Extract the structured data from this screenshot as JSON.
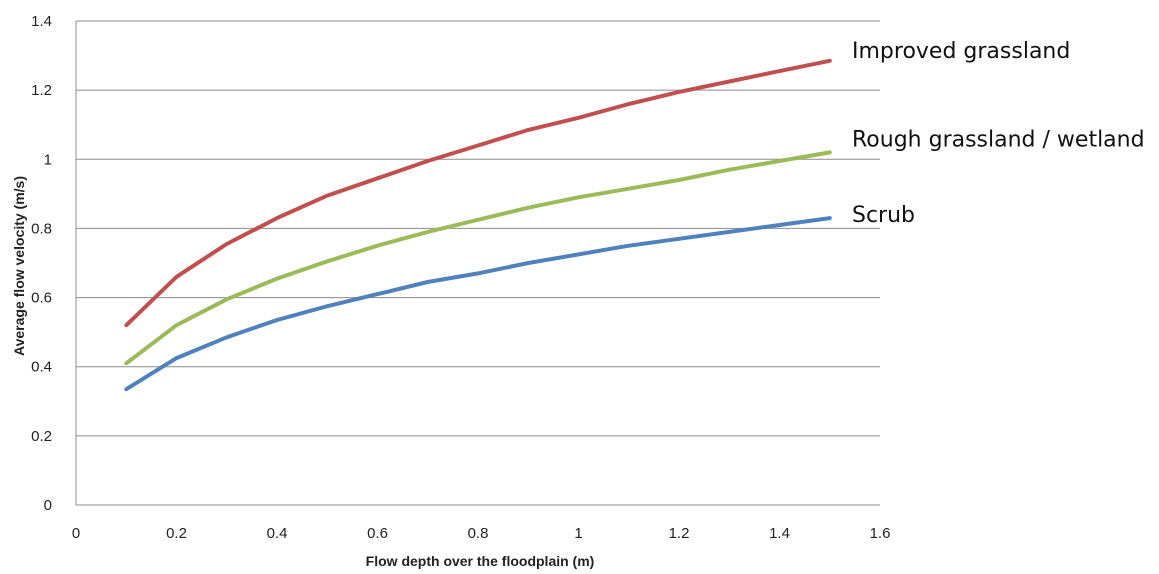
{
  "chart_data": {
    "type": "line",
    "title": "",
    "xlabel": "Flow depth over the floodplain  (m)",
    "ylabel": "Average flow velocity (m/s)",
    "xlim": [
      0,
      1.6
    ],
    "ylim": [
      0,
      1.4
    ],
    "x_ticks": [
      "0",
      "0.2",
      "0.4",
      "0.6",
      "0.8",
      "1",
      "1.2",
      "1.4",
      "1.6"
    ],
    "y_ticks": [
      "0",
      "0.2",
      "0.4",
      "0.6",
      "0.8",
      "1",
      "1.2",
      "1.4"
    ],
    "grid": "horizontal",
    "legend": "labels at line ends",
    "x": [
      0.1,
      0.2,
      0.3,
      0.4,
      0.5,
      0.6,
      0.7,
      0.8,
      0.9,
      1.0,
      1.1,
      1.2,
      1.3,
      1.4,
      1.5
    ],
    "series": [
      {
        "name": "Improved grassland",
        "color": "#c0504d",
        "values": [
          0.52,
          0.66,
          0.755,
          0.83,
          0.895,
          0.945,
          0.995,
          1.04,
          1.085,
          1.12,
          1.16,
          1.195,
          1.225,
          1.255,
          1.285
        ]
      },
      {
        "name": "Rough grassland / wetland",
        "color": "#9bbb59",
        "values": [
          0.41,
          0.52,
          0.595,
          0.655,
          0.705,
          0.75,
          0.79,
          0.825,
          0.86,
          0.89,
          0.915,
          0.94,
          0.97,
          0.995,
          1.02
        ]
      },
      {
        "name": "Scrub",
        "color": "#4f81bd",
        "values": [
          0.335,
          0.425,
          0.485,
          0.535,
          0.575,
          0.61,
          0.645,
          0.67,
          0.7,
          0.725,
          0.75,
          0.77,
          0.79,
          0.81,
          0.83
        ]
      }
    ]
  }
}
